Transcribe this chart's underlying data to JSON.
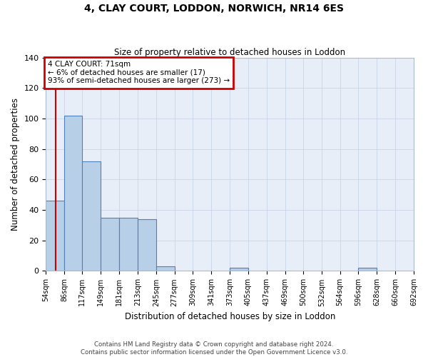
{
  "title": "4, CLAY COURT, LODDON, NORWICH, NR14 6ES",
  "subtitle": "Size of property relative to detached houses in Loddon",
  "xlabel": "Distribution of detached houses by size in Loddon",
  "ylabel": "Number of detached properties",
  "bin_edges": [
    54,
    86,
    117,
    149,
    181,
    213,
    245,
    277,
    309,
    341,
    373,
    405,
    437,
    469,
    500,
    532,
    564,
    596,
    628,
    660,
    692
  ],
  "counts": [
    46,
    102,
    72,
    35,
    35,
    34,
    3,
    0,
    0,
    0,
    2,
    0,
    0,
    0,
    0,
    0,
    0,
    2,
    0,
    0
  ],
  "bar_color": "#b8cfe8",
  "bar_edge_color": "#5080b8",
  "ylim": [
    0,
    140
  ],
  "yticks": [
    0,
    20,
    40,
    60,
    80,
    100,
    120,
    140
  ],
  "property_size": 71,
  "red_line_color": "#cc0000",
  "annotation_line1": "4 CLAY COURT: 71sqm",
  "annotation_line2": "← 6% of detached houses are smaller (17)",
  "annotation_line3": "93% of semi-detached houses are larger (273) →",
  "annotation_box_color": "#cc0000",
  "footer_line1": "Contains HM Land Registry data © Crown copyright and database right 2024.",
  "footer_line2": "Contains public sector information licensed under the Open Government Licence v3.0.",
  "bg_color": "#e8eef8",
  "grid_color": "#c8d4e8"
}
